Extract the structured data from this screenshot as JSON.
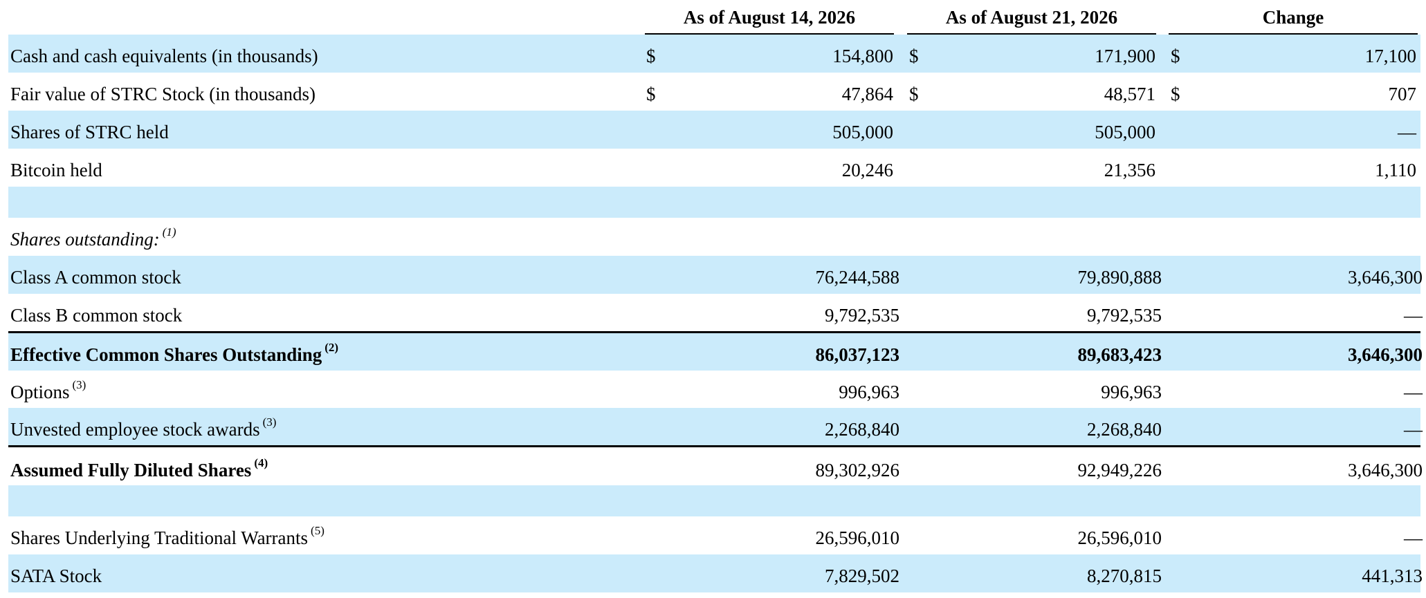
{
  "headers": {
    "col1": "As of August 14, 2026",
    "col2": "As of August 21, 2026",
    "col3": "Change"
  },
  "rows": [
    {
      "label": "Cash and cash equivalents (in thousands)",
      "currency": "$",
      "v1": "154,800",
      "v2": "171,900",
      "v3": "17,100"
    },
    {
      "label": "Fair value of STRC Stock (in thousands)",
      "currency": "$",
      "v1": "47,864",
      "v2": "48,571",
      "v3": "707"
    },
    {
      "label": "Shares of STRC held",
      "v1": "505,000",
      "v2": "505,000",
      "v3": "—"
    },
    {
      "label": "Bitcoin held",
      "v1": "20,246",
      "v2": "21,356",
      "v3": "1,110"
    },
    {
      "label": "Shares outstanding:",
      "note": "(1)"
    },
    {
      "label": "Class A common stock",
      "v1": "76,244,588",
      "v2": "79,890,888",
      "v3": "3,646,300"
    },
    {
      "label": "Class B common stock",
      "v1": "9,792,535",
      "v2": "9,792,535",
      "v3": "—"
    },
    {
      "label": "Effective Common Shares Outstanding",
      "note": "(2)",
      "v1": "86,037,123",
      "v2": "89,683,423",
      "v3": "3,646,300"
    },
    {
      "label": "Options",
      "note": "(3)",
      "v1": "996,963",
      "v2": "996,963",
      "v3": "—"
    },
    {
      "label": "Unvested employee stock awards",
      "note": "(3)",
      "v1": "2,268,840",
      "v2": "2,268,840",
      "v3": "—"
    },
    {
      "label": "Assumed Fully Diluted Shares",
      "note": "(4)",
      "v1": "89,302,926",
      "v2": "92,949,226",
      "v3": "3,646,300"
    },
    {
      "label": "Shares Underlying Traditional Warrants",
      "note": "(5)",
      "v1": "26,596,010",
      "v2": "26,596,010",
      "v3": "—"
    },
    {
      "label": "SATA Stock",
      "v1": "7,829,502",
      "v2": "8,270,815",
      "v3": "441,313"
    }
  ]
}
